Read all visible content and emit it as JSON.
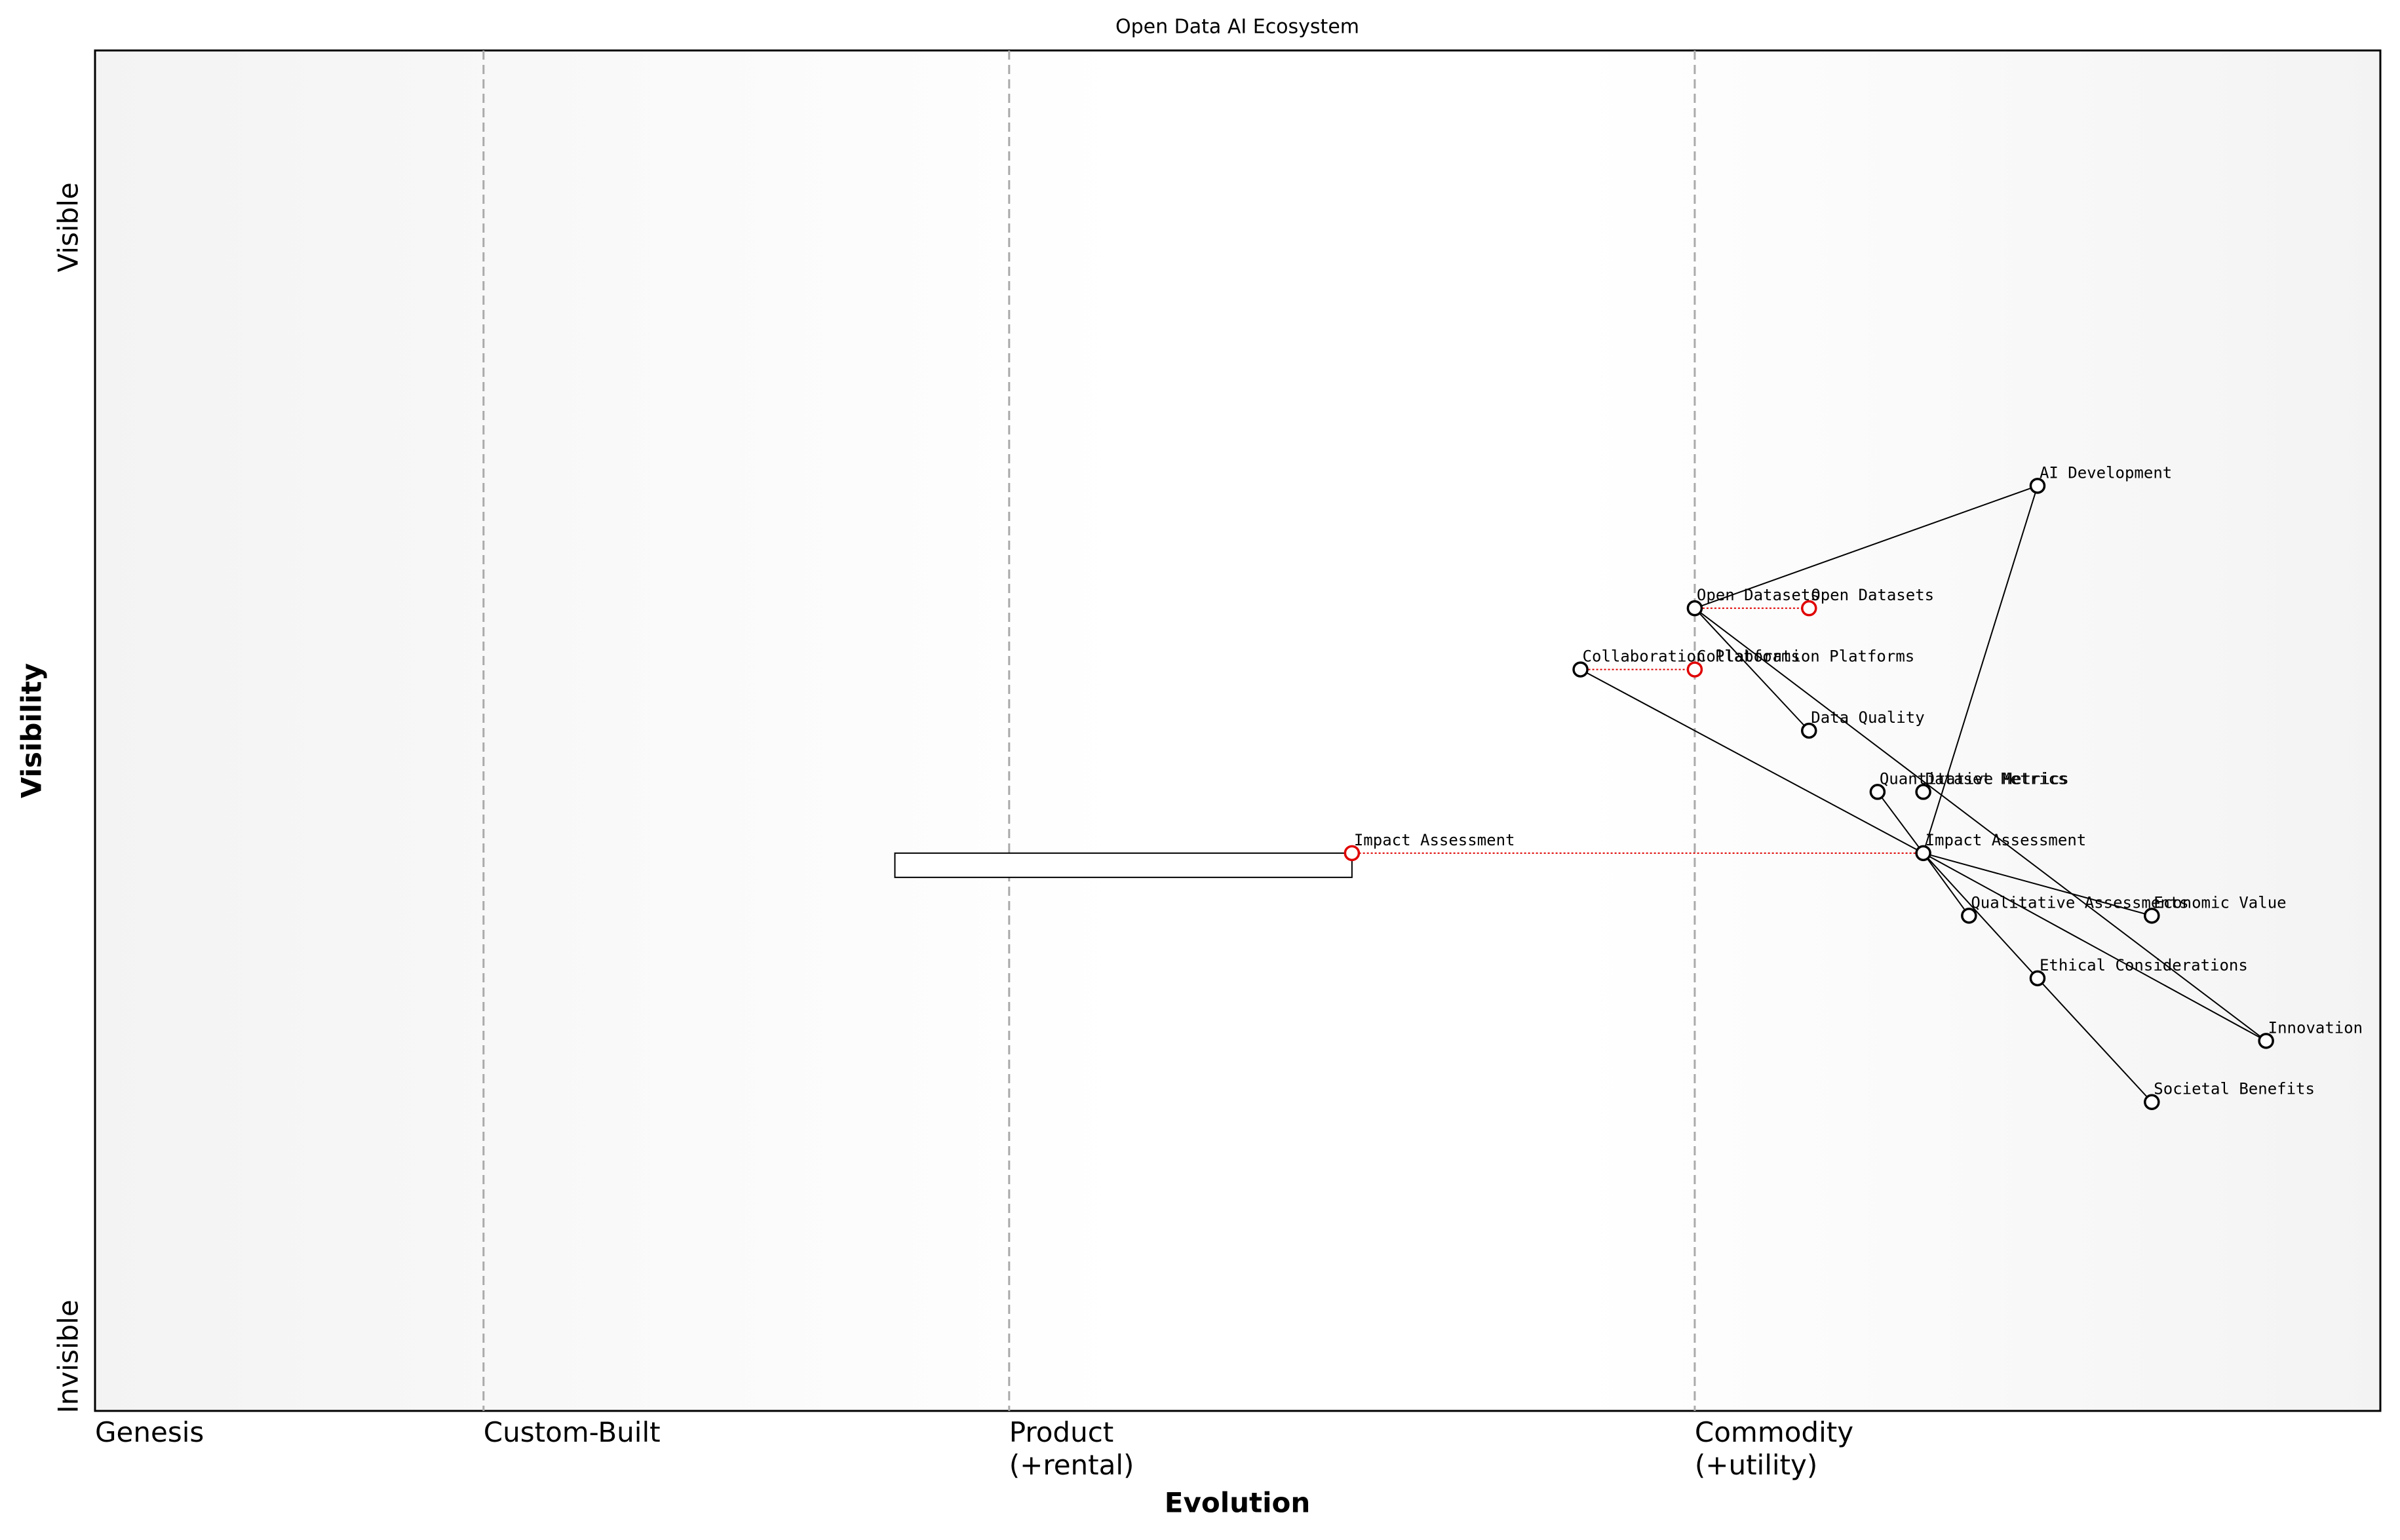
{
  "chart_data": {
    "type": "wardley",
    "title": "Open Data AI Ecosystem",
    "xlabel": "Evolution",
    "ylabel": "Visibility",
    "xlim": [
      0,
      1
    ],
    "ylim": [
      0,
      1
    ],
    "xticks": [
      {
        "value": 0,
        "label": "Genesis"
      },
      {
        "value": 0.17,
        "label": "Custom-Built"
      },
      {
        "value": 0.4,
        "label": "Product\n(+rental)"
      },
      {
        "value": 0.7,
        "label": "Commodity\n(+utility)"
      }
    ],
    "yticks": [
      {
        "value": 0.04,
        "label": "Invisible"
      },
      {
        "value": 0.87,
        "label": "Visible"
      }
    ],
    "components": [
      {
        "name": "AI Development",
        "evolution": 0.85,
        "visibility": 0.68
      },
      {
        "name": "Open Datasets",
        "evolution": 0.7,
        "visibility": 0.59
      },
      {
        "name": "Collaboration Platforms",
        "evolution": 0.65,
        "visibility": 0.545
      },
      {
        "name": "Data Quality",
        "evolution": 0.75,
        "visibility": 0.5
      },
      {
        "name": "Quantitative Metrics",
        "evolution": 0.78,
        "visibility": 0.455
      },
      {
        "name": "Dataset Metrics",
        "evolution": 0.8,
        "visibility": 0.455
      },
      {
        "name": "Impact Assessment",
        "evolution": 0.8,
        "visibility": 0.41
      },
      {
        "name": "Qualitative Assessments",
        "evolution": 0.82,
        "visibility": 0.364
      },
      {
        "name": "Economic Value",
        "evolution": 0.9,
        "visibility": 0.364
      },
      {
        "name": "Ethical Considerations",
        "evolution": 0.85,
        "visibility": 0.318
      },
      {
        "name": "Innovation",
        "evolution": 0.95,
        "visibility": 0.272
      },
      {
        "name": "Societal Benefits",
        "evolution": 0.9,
        "visibility": 0.227
      }
    ],
    "links": [
      [
        "AI Development",
        "Open Datasets"
      ],
      [
        "AI Development",
        "Impact Assessment"
      ],
      [
        "Open Datasets",
        "Data Quality"
      ],
      [
        "Open Datasets",
        "Innovation"
      ],
      [
        "Collaboration Platforms",
        "Impact Assessment"
      ],
      [
        "Quantitative Metrics",
        "Impact Assessment"
      ],
      [
        "Impact Assessment",
        "Qualitative Assessments"
      ],
      [
        "Impact Assessment",
        "Economic Value"
      ],
      [
        "Impact Assessment",
        "Ethical Considerations"
      ],
      [
        "Impact Assessment",
        "Innovation"
      ],
      [
        "Ethical Considerations",
        "Societal Benefits"
      ]
    ],
    "evolve": [
      {
        "name": "Open Datasets",
        "evolution": 0.75
      },
      {
        "name": "Collaboration Platforms",
        "evolution": 0.7
      },
      {
        "name": "Impact Assessment",
        "evolution": 0.55
      }
    ],
    "pipelines": [
      {
        "name": "Impact Assessment",
        "start": 0.35,
        "end": 0.55
      }
    ],
    "evolve_color": "#e00000"
  }
}
